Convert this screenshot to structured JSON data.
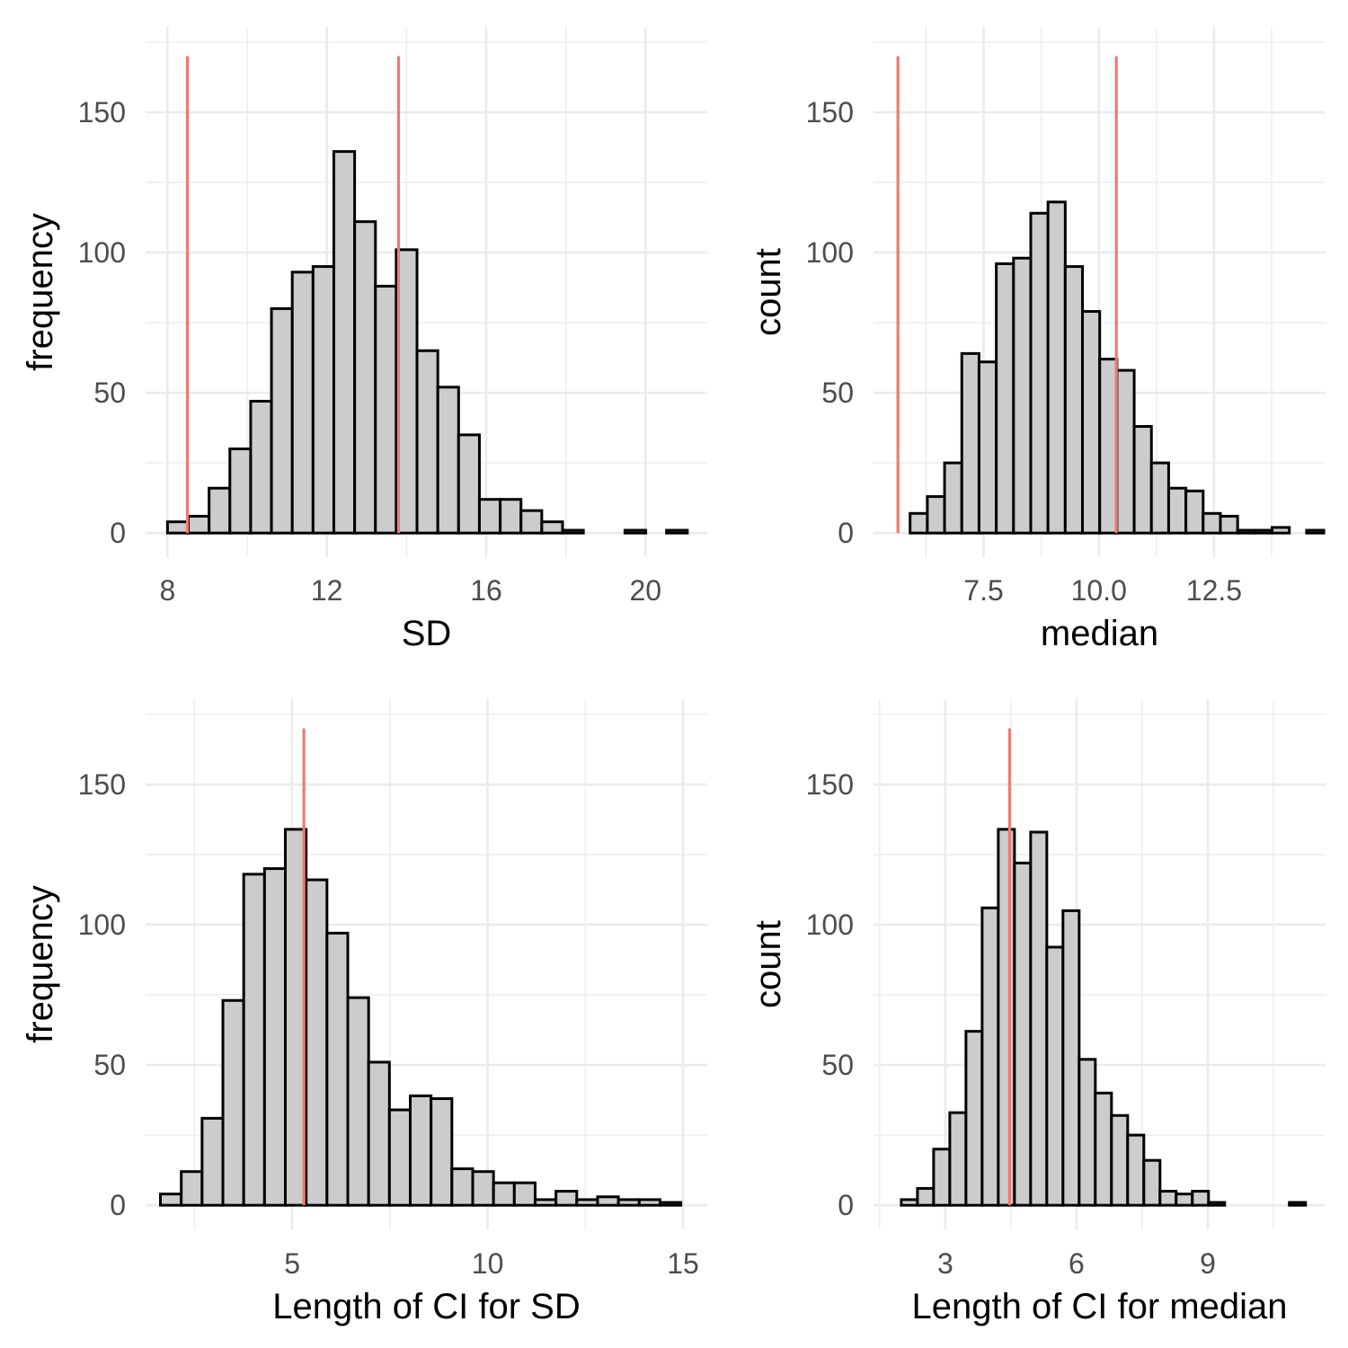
{
  "colors": {
    "bar_fill": "#cccccc",
    "bar_outline": "#000000",
    "reference_line": "#f07a72",
    "grid": "#ebebeb",
    "tick_text": "#4d4d4d"
  },
  "chart_data": [
    {
      "type": "bar",
      "subtype": "histogram",
      "xlabel": "SD",
      "ylabel": "frequency",
      "xlim": [
        7.45,
        21.55
      ],
      "ylim": [
        -8.6,
        180.4
      ],
      "x_ticks": [
        8,
        12,
        16,
        20
      ],
      "x_tick_labels": [
        "8",
        "12",
        "16",
        "20"
      ],
      "y_ticks": [
        0,
        50,
        100,
        150
      ],
      "y_tick_labels": [
        "0",
        "50",
        "100",
        "150"
      ],
      "bin_start": 8.0,
      "bin_width": 0.522,
      "counts": [
        4,
        6,
        16,
        30,
        47,
        80,
        93,
        95,
        136,
        111,
        88,
        101,
        65,
        52,
        35,
        12,
        12,
        8,
        4,
        1,
        0,
        0,
        1,
        0,
        1
      ],
      "vlines": [
        8.5,
        13.8
      ],
      "vline_top": 170,
      "grid": true,
      "legend": "none"
    },
    {
      "type": "bar",
      "subtype": "histogram",
      "xlabel": "median",
      "ylabel": "count",
      "xlim": [
        5.11,
        14.92
      ],
      "ylim": [
        -8.6,
        180.4
      ],
      "x_ticks": [
        7.5,
        10.0,
        12.5
      ],
      "x_tick_labels": [
        "7.5",
        "10.0",
        "12.5"
      ],
      "y_ticks": [
        0,
        50,
        100,
        150
      ],
      "y_tick_labels": [
        "0",
        "50",
        "100",
        "150"
      ],
      "bin_start": 5.53,
      "bin_width": 0.3741,
      "counts": [
        0,
        7,
        13,
        25,
        64,
        61,
        96,
        98,
        114,
        118,
        95,
        79,
        62,
        58,
        38,
        25,
        16,
        15,
        7,
        6,
        1,
        1,
        2,
        0,
        1
      ],
      "vlines": [
        5.64,
        10.38
      ],
      "vline_top": 170,
      "grid": true,
      "legend": "none"
    },
    {
      "type": "bar",
      "subtype": "histogram",
      "xlabel": "Length of CI for SD",
      "ylabel": "frequency",
      "xlim": [
        1.25,
        15.62
      ],
      "ylim": [
        -8.6,
        180.4
      ],
      "x_ticks": [
        5,
        10,
        15
      ],
      "x_tick_labels": [
        "5",
        "10",
        "15"
      ],
      "y_ticks": [
        0,
        50,
        100,
        150
      ],
      "y_tick_labels": [
        "0",
        "50",
        "100",
        "150"
      ],
      "bin_start": 1.63,
      "bin_width": 0.5326,
      "counts": [
        4,
        12,
        31,
        73,
        118,
        120,
        134,
        116,
        97,
        74,
        51,
        34,
        39,
        38,
        13,
        12,
        8,
        8,
        2,
        5,
        2,
        3,
        2,
        2,
        1
      ],
      "vlines": [
        5.3
      ],
      "vline_top": 170,
      "grid": true,
      "legend": "none"
    },
    {
      "type": "bar",
      "subtype": "histogram",
      "xlabel": "Length of CI for median",
      "ylabel": "count",
      "xlim": [
        1.36,
        11.69
      ],
      "ylim": [
        -8.6,
        180.4
      ],
      "x_ticks": [
        3,
        6,
        9
      ],
      "x_tick_labels": [
        "3",
        "6",
        "9"
      ],
      "y_ticks": [
        0,
        50,
        100,
        150
      ],
      "y_tick_labels": [
        "0",
        "50",
        "100",
        "150"
      ],
      "bin_start": 1.995,
      "bin_width": 0.3695,
      "counts": [
        2,
        6,
        20,
        33,
        62,
        106,
        134,
        122,
        133,
        92,
        105,
        52,
        40,
        32,
        25,
        16,
        5,
        4,
        5,
        1,
        0,
        0,
        0,
        0,
        1
      ],
      "vlines": [
        4.47
      ],
      "vline_top": 170,
      "grid": true,
      "legend": "none"
    }
  ]
}
